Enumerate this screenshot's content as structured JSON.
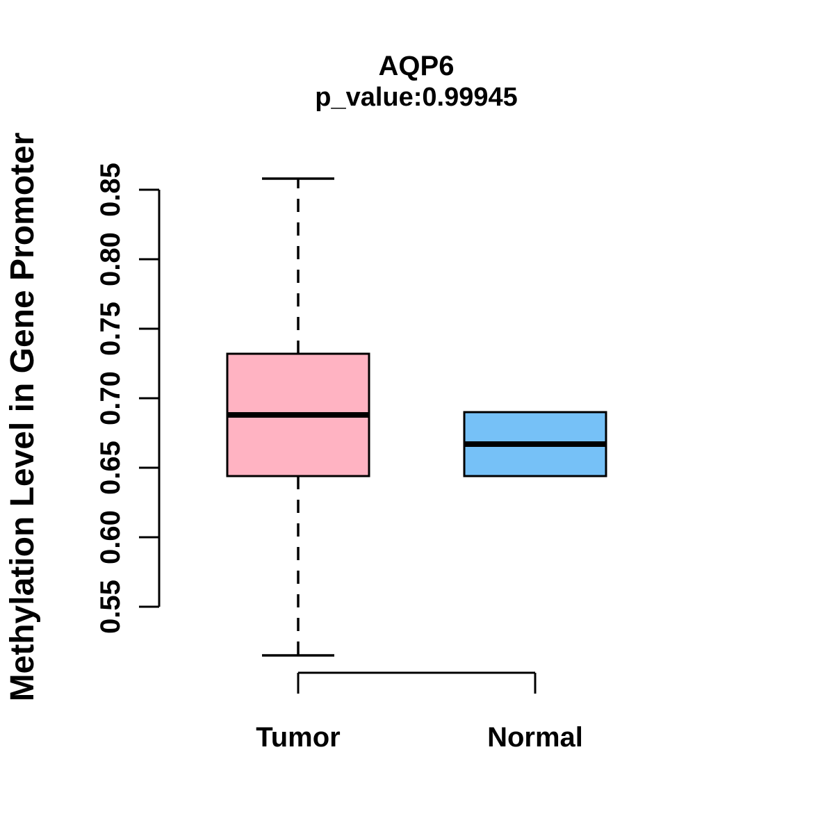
{
  "figure": {
    "background": "#FFFFFF",
    "text_color": "#000000",
    "axis_color": "#000000"
  },
  "chart_data": {
    "type": "boxplot",
    "title": "AQP6",
    "subtitle": "p_value:0.99945",
    "ylabel": "Methylation Level in Gene Promoter",
    "xlabel": "",
    "grid": false,
    "legend_position": "none",
    "y_axis": {
      "ticks": [
        0.55,
        0.6,
        0.65,
        0.7,
        0.75,
        0.8,
        0.85
      ],
      "tick_labels": [
        "0.55",
        "0.60",
        "0.65",
        "0.70",
        "0.75",
        "0.80",
        "0.85"
      ],
      "range_shown": [
        0.515,
        0.858
      ]
    },
    "categories": [
      "Tumor",
      "Normal"
    ],
    "series": [
      {
        "name": "Tumor",
        "color": "#FFB3C2",
        "whisker_low": 0.515,
        "q1": 0.644,
        "median": 0.688,
        "q3": 0.732,
        "whisker_high": 0.858,
        "outliers": []
      },
      {
        "name": "Normal",
        "color": "#76C1F7",
        "whisker_low": 0.644,
        "q1": 0.644,
        "median": 0.667,
        "q3": 0.69,
        "whisker_high": 0.69,
        "outliers": []
      }
    ]
  }
}
